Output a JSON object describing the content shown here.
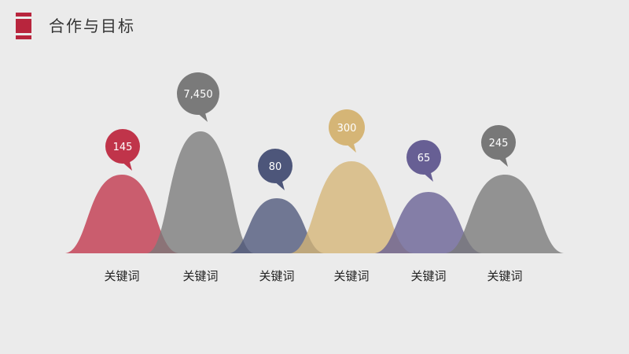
{
  "header": {
    "title": "合作与目标",
    "accent_color": "#b8253d"
  },
  "chart_data": {
    "type": "area",
    "title": "",
    "xlabel": "",
    "ylabel": "",
    "categories": [
      "关键词",
      "关键词",
      "关键词",
      "关键词",
      "关键词",
      "关键词"
    ],
    "values": [
      145,
      7450,
      80,
      300,
      65,
      245
    ],
    "value_labels": [
      "145",
      "7,450",
      "80",
      "300",
      "65",
      "245"
    ],
    "colors": [
      "#c0344a",
      "#7a7a7a",
      "#4d567a",
      "#d5b576",
      "#675f94",
      "#787878"
    ],
    "grid": false,
    "legend": "none"
  }
}
